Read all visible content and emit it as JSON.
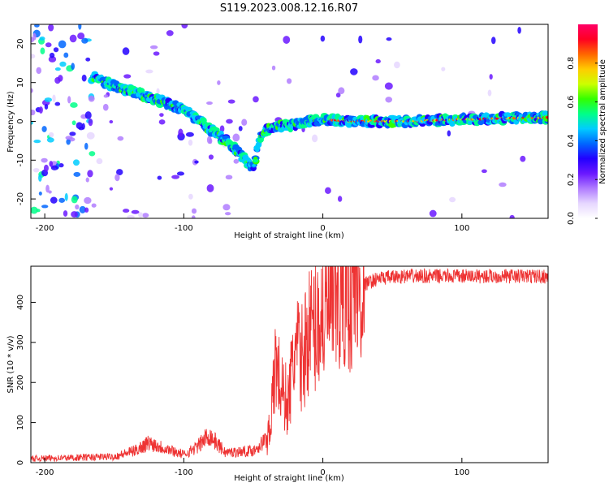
{
  "title": "S119.2023.008.12.16.R07",
  "colors": {
    "line": "#ee3333",
    "axis": "#000000",
    "colormap": [
      "#ffffff",
      "#e6d7ff",
      "#b07cff",
      "#6a18ff",
      "#2200ff",
      "#0066ff",
      "#00ccff",
      "#00ff88",
      "#33ff00",
      "#ccff00",
      "#ffcc00",
      "#ff6600",
      "#ff0022",
      "#ff0066"
    ]
  },
  "chart_data": [
    {
      "type": "heatmap",
      "xlabel": "Height of straight line (km)",
      "ylabel": "Frequency (Hz)",
      "xlim": [
        -210,
        162
      ],
      "ylim": [
        -25,
        25
      ],
      "xticks": [
        -200,
        -100,
        0,
        100
      ],
      "yticks": [
        -20,
        -10,
        0,
        10,
        20
      ],
      "colorbar": {
        "label": "Normalized spectral amplitude",
        "range": [
          0,
          1
        ],
        "ticks": [
          0.0,
          0.2,
          0.4,
          0.6,
          0.8
        ]
      },
      "ridge": {
        "x": [
          -165,
          -150,
          -130,
          -115,
          -100,
          -85,
          -70,
          -58,
          -50,
          -45,
          -40,
          -30,
          -20,
          -10,
          0,
          20,
          60,
          100,
          160
        ],
        "y": [
          11.5,
          9,
          7,
          5,
          3,
          -1,
          -5,
          -9,
          -12,
          -4,
          -2,
          -1,
          -1,
          0,
          0.5,
          0,
          0,
          0.5,
          1
        ]
      },
      "noise_region_x": [
        -210,
        -165
      ]
    },
    {
      "type": "line",
      "xlabel": "Height of straight line (km)",
      "ylabel": "SNR (10 * v/v)",
      "xlim": [
        -210,
        162
      ],
      "ylim": [
        0,
        490
      ],
      "xticks": [
        -200,
        -100,
        0,
        100
      ],
      "yticks": [
        0,
        100,
        200,
        300,
        400
      ],
      "trend": {
        "x": [
          -210,
          -150,
          -135,
          -125,
          -100,
          -90,
          -82,
          -70,
          -50,
          -40,
          -36,
          -34,
          -30,
          -25,
          -20,
          -15,
          -10,
          -5,
          0,
          10,
          20,
          30,
          40,
          60,
          100,
          160
        ],
        "y": [
          10,
          15,
          30,
          50,
          20,
          40,
          70,
          25,
          30,
          60,
          150,
          260,
          180,
          150,
          280,
          260,
          330,
          340,
          370,
          400,
          430,
          445,
          460,
          465,
          465,
          465
        ]
      }
    }
  ]
}
